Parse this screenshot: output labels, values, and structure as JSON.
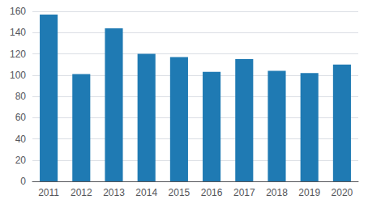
{
  "chart_data": {
    "type": "bar",
    "categories": [
      "2011",
      "2012",
      "2013",
      "2014",
      "2015",
      "2016",
      "2017",
      "2018",
      "2019",
      "2020"
    ],
    "values": [
      157,
      101,
      144,
      120,
      117,
      103,
      115,
      104,
      102,
      110
    ],
    "color": "#1f7ab3",
    "ylim": [
      0,
      160
    ],
    "yticks": [
      0,
      20,
      40,
      60,
      80,
      100,
      120,
      140,
      160
    ],
    "grid": true
  }
}
